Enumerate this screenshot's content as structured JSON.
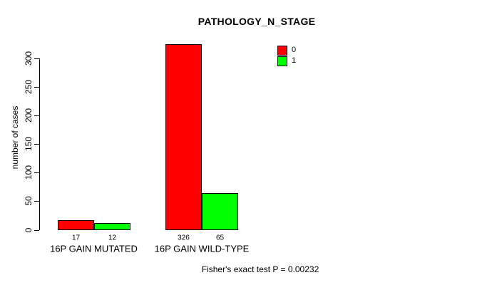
{
  "chart_data": {
    "type": "bar",
    "title": "PATHOLOGY_N_STAGE",
    "xlabel": "",
    "ylabel": "number of cases",
    "categories": [
      "16P GAIN MUTATED",
      "16P GAIN WILD-TYPE"
    ],
    "series": [
      {
        "name": "0",
        "color": "#FF0000",
        "values": [
          17,
          326
        ]
      },
      {
        "name": "1",
        "color": "#00FF00",
        "values": [
          12,
          65
        ]
      }
    ],
    "bar_value_labels": [
      [
        "17",
        "12"
      ],
      [
        "326",
        "65"
      ]
    ],
    "ylim": [
      0,
      300
    ],
    "yticks": [
      0,
      50,
      100,
      150,
      200,
      250,
      300
    ],
    "grid": false,
    "legend_position": "top-right",
    "annotation": "Fisher's exact test P = 0.00232"
  },
  "colors": {
    "series0": "#FF0000",
    "series1": "#00FF00",
    "axis": "#000000",
    "background": "#FFFFFF"
  }
}
